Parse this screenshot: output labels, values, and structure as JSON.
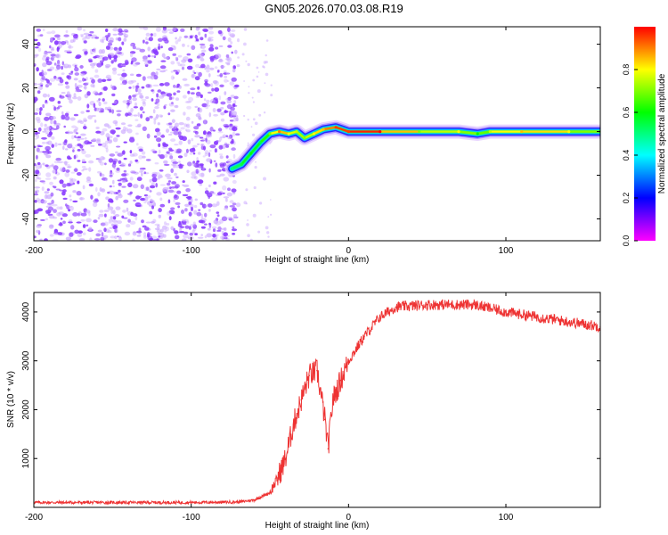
{
  "page": {
    "title": "GN05.2026.070.03.08.R19"
  },
  "colors": {
    "scatter_dots": "#8a3cff",
    "scatter_dots_light": "#c9a6ff",
    "snr_line": "#ee3333",
    "ridge_colormap": [
      "#ff00ff",
      "#0000ff",
      "#00ffff",
      "#00ff00",
      "#ffff00",
      "#ff0000"
    ]
  },
  "chart_data": [
    {
      "id": "spectrogram",
      "type": "heatmap",
      "xlabel": "Height of straight line (km)",
      "ylabel": "Frequency (Hz)",
      "xlim": [
        -200,
        160
      ],
      "ylim": [
        -50,
        48
      ],
      "x_ticks": [
        -200,
        -100,
        0,
        100
      ],
      "y_ticks": [
        -40,
        -20,
        0,
        20,
        40
      ],
      "grid": false,
      "noise_region_x": [
        -200,
        -70
      ],
      "ridge": [
        {
          "x": -74,
          "y": -17,
          "amp": 0.5
        },
        {
          "x": -68,
          "y": -15,
          "amp": 0.55
        },
        {
          "x": -62,
          "y": -10,
          "amp": 0.6
        },
        {
          "x": -56,
          "y": -5,
          "amp": 0.55
        },
        {
          "x": -50,
          "y": -1,
          "amp": 0.7
        },
        {
          "x": -44,
          "y": 0,
          "amp": 0.9
        },
        {
          "x": -38,
          "y": -1,
          "amp": 0.8
        },
        {
          "x": -33,
          "y": 0,
          "amp": 0.75
        },
        {
          "x": -28,
          "y": -3,
          "amp": 0.7
        },
        {
          "x": -22,
          "y": -1,
          "amp": 0.8
        },
        {
          "x": -16,
          "y": 1,
          "amp": 0.85
        },
        {
          "x": -8,
          "y": 2,
          "amp": 0.95
        },
        {
          "x": 0,
          "y": 0,
          "amp": 0.95
        },
        {
          "x": 20,
          "y": 0,
          "amp": 1.0
        },
        {
          "x": 45,
          "y": 0,
          "amp": 0.7
        },
        {
          "x": 70,
          "y": 0,
          "amp": 0.8
        },
        {
          "x": 82,
          "y": -1,
          "amp": 0.6
        },
        {
          "x": 90,
          "y": 0,
          "amp": 0.75
        },
        {
          "x": 110,
          "y": 0,
          "amp": 0.85
        },
        {
          "x": 140,
          "y": 0,
          "amp": 0.8
        },
        {
          "x": 160,
          "y": 0,
          "amp": 0.6
        }
      ],
      "colorbar": {
        "label": "Normalized spectral amplitude",
        "ticks": [
          "0.0",
          "0.2",
          "0.4",
          "0.6",
          "0.8"
        ],
        "range": [
          0,
          1
        ]
      }
    },
    {
      "id": "snr",
      "type": "line",
      "xlabel": "Height of straight line (km)",
      "ylabel": "SNR (10 * v/v)",
      "xlim": [
        -200,
        160
      ],
      "ylim": [
        0,
        4400
      ],
      "x_ticks": [
        -200,
        -100,
        0,
        100
      ],
      "y_ticks": [
        1000,
        2000,
        3000,
        4000
      ],
      "grid": false,
      "series": [
        {
          "x": [
            -200,
            -150,
            -100,
            -70,
            -60,
            -50,
            -45,
            -40,
            -35,
            -30,
            -25,
            -20,
            -15,
            -13,
            -10,
            -5,
            0,
            10,
            20,
            30,
            50,
            70,
            80,
            100,
            120,
            140,
            160
          ],
          "y": [
            100,
            100,
            100,
            110,
            150,
            300,
            600,
            1000,
            1700,
            2200,
            2700,
            2800,
            1800,
            1200,
            2200,
            2600,
            3000,
            3500,
            3900,
            4100,
            4150,
            4150,
            4150,
            4000,
            3900,
            3800,
            3700
          ]
        }
      ]
    }
  ]
}
